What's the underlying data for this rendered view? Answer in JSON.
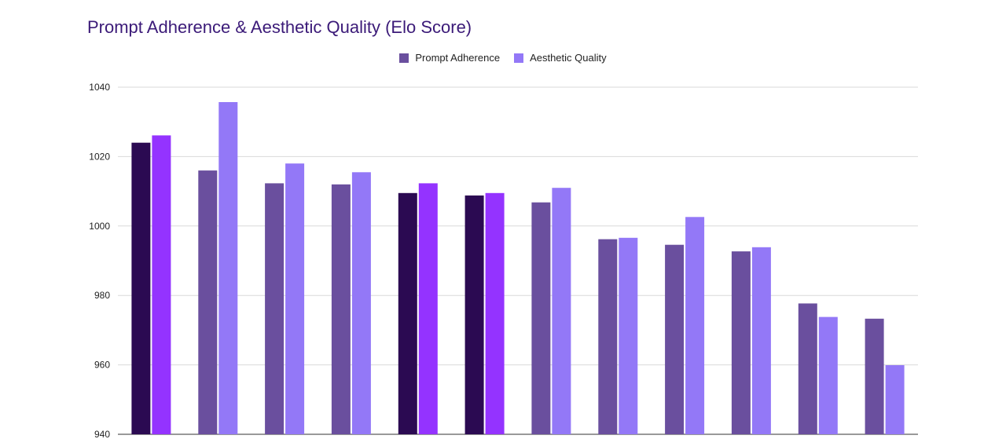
{
  "chart_data": {
    "type": "bar",
    "title": "Prompt Adherence & Aesthetic Quality (Elo Score)",
    "xlabel": "",
    "ylabel": "",
    "ylim": [
      940,
      1040
    ],
    "yticks": [
      940,
      960,
      980,
      1000,
      1020,
      1040
    ],
    "grid": true,
    "legend_position": "top-center",
    "categories": [
      "",
      "",
      "",
      "",
      "",
      "",
      "",
      "",
      "",
      "",
      "",
      ""
    ],
    "series": [
      {
        "name": "Prompt Adherence",
        "color": "#6a4f9e",
        "values": [
          1024,
          1016,
          1012.3,
          1012,
          1009.5,
          1008.8,
          1006.8,
          996.2,
          994.6,
          992.7,
          977.7,
          973.3
        ]
      },
      {
        "name": "Aesthetic Quality",
        "color": "#9378f7",
        "values": [
          1026.1,
          1035.7,
          1018,
          1015.5,
          1012.3,
          1009.5,
          1011,
          996.6,
          1002.6,
          993.9,
          973.8,
          959.9
        ]
      }
    ],
    "highlight_indices": [
      0,
      4,
      5
    ],
    "highlight_colors": [
      "#2b0a52",
      "#9433ff"
    ]
  }
}
